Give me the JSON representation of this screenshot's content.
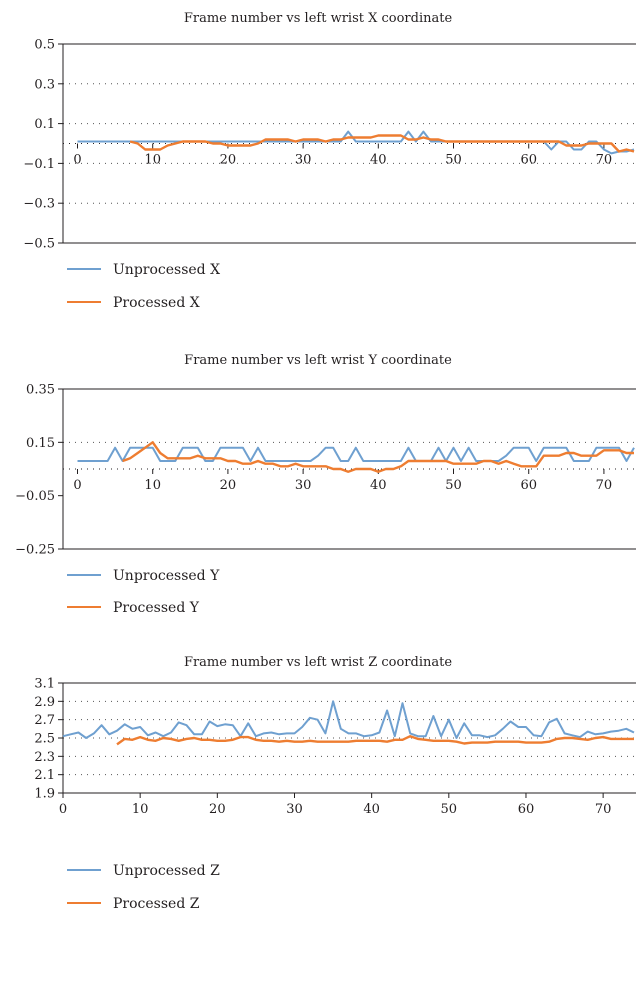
{
  "chart_data": [
    {
      "type": "line",
      "title": "Frame number vs left wrist X coordinate",
      "xlabel": "",
      "ylabel": "",
      "xlim": [
        0,
        74
      ],
      "ylim": [
        -0.5,
        0.5
      ],
      "yticks": [
        -0.5,
        -0.3,
        -0.1,
        0.1,
        0.3,
        0.5
      ],
      "ytick_labels": [
        "−0.5",
        "−0.3",
        "−0.1",
        "0.1",
        "0.3",
        "0.5"
      ],
      "xticks": [
        0,
        10,
        20,
        30,
        40,
        50,
        60,
        70
      ],
      "xtick_labels": [
        "0",
        "10",
        "20",
        "30",
        "40",
        "50",
        "60",
        "70"
      ],
      "x_axis_at_y": 0,
      "grid": "dotted-horizontal",
      "legend_position": "bottom-left",
      "series": [
        {
          "name": "Unprocessed X",
          "color": "#6fa0d0",
          "x": [
            0,
            1,
            2,
            3,
            4,
            5,
            6,
            7,
            8,
            9,
            10,
            11,
            12,
            13,
            14,
            15,
            16,
            17,
            18,
            19,
            20,
            21,
            22,
            23,
            24,
            25,
            26,
            27,
            28,
            29,
            30,
            31,
            32,
            33,
            34,
            35,
            36,
            37,
            38,
            39,
            40,
            41,
            42,
            43,
            44,
            45,
            46,
            47,
            48,
            49,
            50,
            51,
            52,
            53,
            54,
            55,
            56,
            57,
            58,
            59,
            60,
            61,
            62,
            63,
            64,
            65,
            66,
            67,
            68,
            69,
            70,
            71,
            72,
            73,
            74
          ],
          "values": [
            0.01,
            0.01,
            0.01,
            0.01,
            0.01,
            0.01,
            0.01,
            0.01,
            0.01,
            0.01,
            0.01,
            0.01,
            0.01,
            0.01,
            0.01,
            0.01,
            0.01,
            0.01,
            0.01,
            0.01,
            0.01,
            0.01,
            0.01,
            0.01,
            0.01,
            0.01,
            0.01,
            0.01,
            0.01,
            0.01,
            0.01,
            0.01,
            0.01,
            0.01,
            0.01,
            0.01,
            0.06,
            0.01,
            0.01,
            0.01,
            0.01,
            0.01,
            0.01,
            0.01,
            0.06,
            0.01,
            0.06,
            0.01,
            0.01,
            0.01,
            0.01,
            0.01,
            0.01,
            0.01,
            0.01,
            0.01,
            0.01,
            0.01,
            0.01,
            0.01,
            0.01,
            0.01,
            0.01,
            -0.03,
            0.01,
            0.01,
            -0.03,
            -0.03,
            0.01,
            0.01,
            -0.03,
            -0.05,
            -0.04,
            -0.04,
            -0.03
          ]
        },
        {
          "name": "Processed X",
          "color": "#ee7d31",
          "x": [
            7,
            8,
            9,
            10,
            11,
            12,
            13,
            14,
            15,
            16,
            17,
            18,
            19,
            20,
            21,
            22,
            23,
            24,
            25,
            26,
            27,
            28,
            29,
            30,
            31,
            32,
            33,
            34,
            35,
            36,
            37,
            38,
            39,
            40,
            41,
            42,
            43,
            44,
            45,
            46,
            47,
            48,
            49,
            50,
            51,
            52,
            53,
            54,
            55,
            56,
            57,
            58,
            59,
            60,
            61,
            62,
            63,
            64,
            65,
            66,
            67,
            68,
            69,
            70,
            71,
            72,
            73,
            74
          ],
          "values": [
            0.01,
            0.0,
            -0.03,
            -0.03,
            -0.03,
            -0.01,
            0.0,
            0.01,
            0.01,
            0.01,
            0.01,
            0.0,
            0.0,
            -0.01,
            -0.01,
            -0.01,
            -0.01,
            0.0,
            0.02,
            0.02,
            0.02,
            0.02,
            0.01,
            0.02,
            0.02,
            0.02,
            0.01,
            0.02,
            0.02,
            0.03,
            0.03,
            0.03,
            0.03,
            0.04,
            0.04,
            0.04,
            0.04,
            0.02,
            0.02,
            0.03,
            0.02,
            0.02,
            0.01,
            0.01,
            0.01,
            0.01,
            0.01,
            0.01,
            0.01,
            0.01,
            0.01,
            0.01,
            0.01,
            0.01,
            0.01,
            0.01,
            0.01,
            0.01,
            -0.01,
            -0.01,
            -0.01,
            0.0,
            0.0,
            0.0,
            0.0,
            -0.04,
            -0.03,
            -0.04
          ]
        }
      ]
    },
    {
      "type": "line",
      "title": "Frame number vs left wrist Y coordinate",
      "xlabel": "",
      "ylabel": "",
      "xlim": [
        0,
        74
      ],
      "ylim": [
        -0.25,
        0.35
      ],
      "yticks": [
        -0.25,
        -0.05,
        0.15,
        0.35
      ],
      "ytick_labels": [
        "−0.25",
        "−0.05",
        "0.15",
        "0.35"
      ],
      "xticks": [
        0,
        10,
        20,
        30,
        40,
        50,
        60,
        70
      ],
      "xtick_labels": [
        "0",
        "10",
        "20",
        "30",
        "40",
        "50",
        "60",
        "70"
      ],
      "x_axis_at_y": 0.05,
      "grid_lines_y": [
        0.15,
        0.05
      ],
      "grid": "dotted-horizontal",
      "legend_position": "bottom-left",
      "series": [
        {
          "name": "Unprocessed Y",
          "color": "#6fa0d0",
          "x": [
            0,
            1,
            2,
            3,
            4,
            5,
            6,
            7,
            8,
            9,
            10,
            11,
            12,
            13,
            14,
            15,
            16,
            17,
            18,
            19,
            20,
            21,
            22,
            23,
            24,
            25,
            26,
            27,
            28,
            29,
            30,
            31,
            32,
            33,
            34,
            35,
            36,
            37,
            38,
            39,
            40,
            41,
            42,
            43,
            44,
            45,
            46,
            47,
            48,
            49,
            50,
            51,
            52,
            53,
            54,
            55,
            56,
            57,
            58,
            59,
            60,
            61,
            62,
            63,
            64,
            65,
            66,
            67,
            68,
            69,
            70,
            71,
            72,
            73,
            74
          ],
          "values": [
            0.08,
            0.08,
            0.08,
            0.08,
            0.08,
            0.13,
            0.08,
            0.13,
            0.13,
            0.13,
            0.13,
            0.08,
            0.08,
            0.08,
            0.13,
            0.13,
            0.13,
            0.08,
            0.08,
            0.13,
            0.13,
            0.13,
            0.13,
            0.08,
            0.13,
            0.08,
            0.08,
            0.08,
            0.08,
            0.08,
            0.08,
            0.08,
            0.1,
            0.13,
            0.13,
            0.08,
            0.08,
            0.13,
            0.08,
            0.08,
            0.08,
            0.08,
            0.08,
            0.08,
            0.13,
            0.08,
            0.08,
            0.08,
            0.13,
            0.08,
            0.13,
            0.08,
            0.13,
            0.08,
            0.08,
            0.08,
            0.08,
            0.1,
            0.13,
            0.13,
            0.13,
            0.08,
            0.13,
            0.13,
            0.13,
            0.13,
            0.08,
            0.08,
            0.08,
            0.13,
            0.13,
            0.13,
            0.13,
            0.08,
            0.13
          ]
        },
        {
          "name": "Processed Y",
          "color": "#ee7d31",
          "x": [
            6,
            7,
            8,
            9,
            10,
            11,
            12,
            13,
            14,
            15,
            16,
            17,
            18,
            19,
            20,
            21,
            22,
            23,
            24,
            25,
            26,
            27,
            28,
            29,
            30,
            31,
            32,
            33,
            34,
            35,
            36,
            37,
            38,
            39,
            40,
            41,
            42,
            43,
            44,
            45,
            46,
            47,
            48,
            49,
            50,
            51,
            52,
            53,
            54,
            55,
            56,
            57,
            58,
            59,
            60,
            61,
            62,
            63,
            64,
            65,
            66,
            67,
            68,
            69,
            70,
            71,
            72,
            73,
            74
          ],
          "values": [
            0.08,
            0.09,
            0.11,
            0.13,
            0.15,
            0.11,
            0.09,
            0.09,
            0.09,
            0.09,
            0.1,
            0.09,
            0.09,
            0.09,
            0.08,
            0.08,
            0.07,
            0.07,
            0.08,
            0.07,
            0.07,
            0.06,
            0.06,
            0.07,
            0.06,
            0.06,
            0.06,
            0.06,
            0.05,
            0.05,
            0.04,
            0.05,
            0.05,
            0.05,
            0.04,
            0.05,
            0.05,
            0.06,
            0.08,
            0.08,
            0.08,
            0.08,
            0.08,
            0.08,
            0.07,
            0.07,
            0.07,
            0.07,
            0.08,
            0.08,
            0.07,
            0.08,
            0.07,
            0.06,
            0.06,
            0.06,
            0.1,
            0.1,
            0.1,
            0.11,
            0.11,
            0.1,
            0.1,
            0.1,
            0.12,
            0.12,
            0.12,
            0.11,
            0.11
          ]
        }
      ]
    },
    {
      "type": "line",
      "title": "Frame number vs left wrist Z coordinate",
      "xlabel": "",
      "ylabel": "",
      "xlim": [
        0,
        74
      ],
      "ylim": [
        1.9,
        3.1
      ],
      "yticks": [
        1.9,
        2.1,
        2.3,
        2.5,
        2.7,
        2.9,
        3.1
      ],
      "ytick_labels": [
        "1.9",
        "2.1",
        "2.3",
        "2.5",
        "2.7",
        "2.9",
        "3.1"
      ],
      "xticks": [
        0,
        10,
        20,
        30,
        40,
        50,
        60,
        70
      ],
      "xtick_labels": [
        "0",
        "10",
        "20",
        "30",
        "40",
        "50",
        "60",
        "70"
      ],
      "x_axis_at_y": 1.9,
      "grid": "dotted-horizontal",
      "legend_position": "bottom-left",
      "series": [
        {
          "name": "Unprocessed Z",
          "color": "#6fa0d0",
          "x": [
            0,
            1,
            2,
            3,
            4,
            5,
            6,
            7,
            8,
            9,
            10,
            11,
            12,
            13,
            14,
            15,
            16,
            17,
            18,
            19,
            20,
            21,
            22,
            23,
            24,
            25,
            26,
            27,
            28,
            29,
            30,
            31,
            32,
            33,
            34,
            35,
            36,
            37,
            38,
            39,
            40,
            41,
            42,
            43,
            44,
            45,
            46,
            47,
            48,
            49,
            50,
            51,
            52,
            53,
            54,
            55,
            56,
            57,
            58,
            59,
            60,
            61,
            62,
            63,
            64,
            65,
            66,
            67,
            68,
            69,
            70,
            71,
            72,
            73,
            74
          ],
          "values": [
            2.52,
            2.54,
            2.56,
            2.5,
            2.55,
            2.64,
            2.54,
            2.58,
            2.65,
            2.6,
            2.62,
            2.53,
            2.56,
            2.52,
            2.56,
            2.67,
            2.64,
            2.54,
            2.54,
            2.68,
            2.63,
            2.65,
            2.64,
            2.52,
            2.66,
            2.52,
            2.55,
            2.56,
            2.54,
            2.55,
            2.55,
            2.62,
            2.72,
            2.7,
            2.55,
            2.9,
            2.6,
            2.55,
            2.55,
            2.52,
            2.53,
            2.56,
            2.8,
            2.52,
            2.88,
            2.55,
            2.52,
            2.52,
            2.74,
            2.52,
            2.7,
            2.5,
            2.66,
            2.53,
            2.53,
            2.51,
            2.53,
            2.6,
            2.68,
            2.62,
            2.62,
            2.53,
            2.52,
            2.67,
            2.71,
            2.55,
            2.53,
            2.51,
            2.57,
            2.54,
            2.55,
            2.57,
            2.58,
            2.6,
            2.56
          ]
        },
        {
          "name": "Processed Z",
          "color": "#ee7d31",
          "x": [
            7,
            8,
            9,
            10,
            11,
            12,
            13,
            14,
            15,
            16,
            17,
            18,
            19,
            20,
            21,
            22,
            23,
            24,
            25,
            26,
            27,
            28,
            29,
            30,
            31,
            32,
            33,
            34,
            35,
            36,
            37,
            38,
            39,
            40,
            41,
            42,
            43,
            44,
            45,
            46,
            47,
            48,
            49,
            50,
            51,
            52,
            53,
            54,
            55,
            56,
            57,
            58,
            59,
            60,
            61,
            62,
            63,
            64,
            65,
            66,
            67,
            68,
            69,
            70,
            71,
            72,
            73,
            74
          ],
          "values": [
            2.43,
            2.49,
            2.48,
            2.51,
            2.48,
            2.47,
            2.5,
            2.49,
            2.47,
            2.49,
            2.5,
            2.48,
            2.48,
            2.47,
            2.47,
            2.48,
            2.51,
            2.51,
            2.48,
            2.47,
            2.47,
            2.46,
            2.47,
            2.46,
            2.46,
            2.47,
            2.46,
            2.46,
            2.46,
            2.46,
            2.46,
            2.47,
            2.47,
            2.47,
            2.47,
            2.46,
            2.48,
            2.48,
            2.52,
            2.49,
            2.48,
            2.47,
            2.47,
            2.47,
            2.46,
            2.44,
            2.45,
            2.45,
            2.45,
            2.46,
            2.46,
            2.46,
            2.46,
            2.45,
            2.45,
            2.45,
            2.46,
            2.49,
            2.5,
            2.5,
            2.49,
            2.48,
            2.5,
            2.51,
            2.49,
            2.49,
            2.49,
            2.49
          ]
        }
      ]
    }
  ]
}
